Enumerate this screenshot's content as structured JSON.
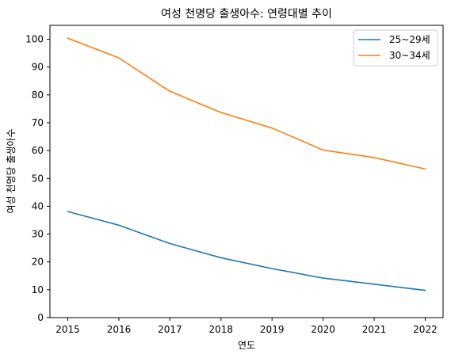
{
  "chart_data": {
    "type": "line",
    "title": "여성 천명당 출생아수: 연령대별 추이",
    "xlabel": "연도",
    "ylabel": "여성 천명당 출생아수",
    "x": [
      2015,
      2016,
      2017,
      2018,
      2019,
      2020,
      2021,
      2022
    ],
    "xlim": [
      2014.65,
      2022.35
    ],
    "ylim": [
      0,
      105
    ],
    "yticks": [
      0,
      10,
      20,
      30,
      40,
      50,
      60,
      70,
      80,
      90,
      100
    ],
    "grid": false,
    "legend_position": "top-right",
    "series": [
      {
        "name": "25~29세",
        "color": "#1f77b4",
        "values": [
          38.1,
          33.2,
          26.6,
          21.5,
          17.6,
          14.2,
          12.0,
          9.8
        ]
      },
      {
        "name": "30~34세",
        "color": "#ff7f0e",
        "values": [
          100.4,
          93.3,
          81.3,
          73.7,
          68.1,
          60.2,
          57.5,
          53.4
        ]
      }
    ]
  }
}
